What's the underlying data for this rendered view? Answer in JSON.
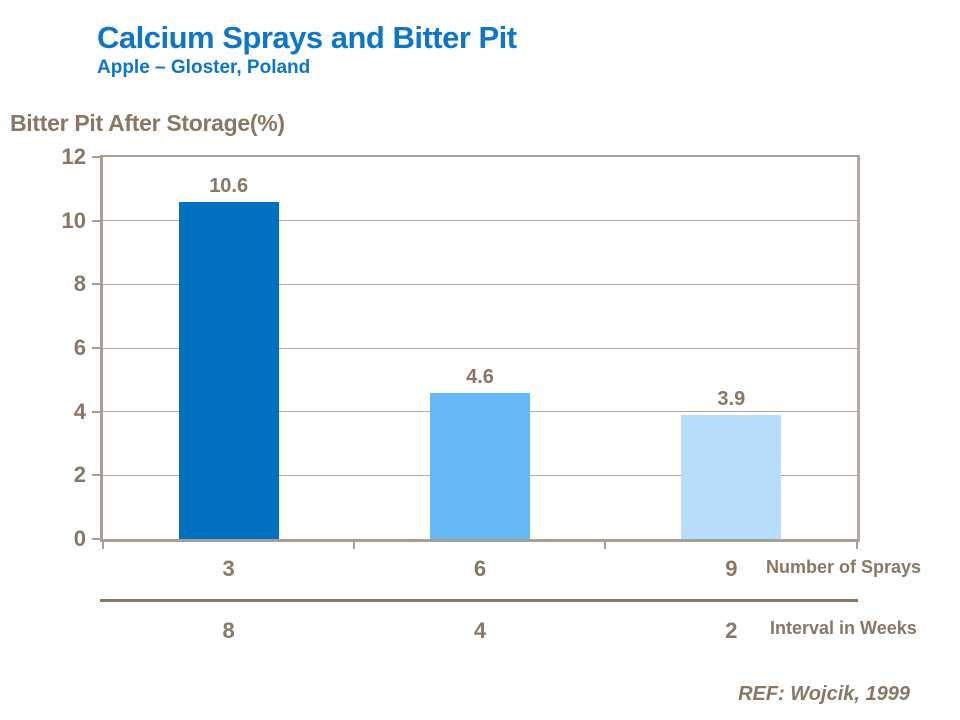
{
  "chart_data": {
    "type": "bar",
    "title": "Calcium Sprays and Bitter Pit",
    "subtitle": "Apple – Gloster, Poland",
    "ylabel": "Bitter Pit After Storage(%)",
    "ylim": [
      0,
      12
    ],
    "yticks": [
      0,
      2,
      4,
      6,
      8,
      10,
      12
    ],
    "grid": true,
    "values": [
      10.6,
      4.6,
      3.9
    ],
    "value_labels": [
      "10.6",
      "4.6",
      "3.9"
    ],
    "bar_colors": [
      "#0070bf",
      "#66b9f7",
      "#b8ddfb"
    ],
    "x_rows": [
      {
        "label": "Number of Sprays",
        "values": [
          "3",
          "6",
          "9"
        ]
      },
      {
        "label": "Interval in Weeks",
        "values": [
          "8",
          "4",
          "2"
        ]
      }
    ],
    "annotation": "REF: Wojcik, 1999"
  },
  "colors": {
    "title_blue": "#0d76c6",
    "text_brown": "#8a7663",
    "axis_gray": "#a89e93",
    "gridline_gray": "#b3a99e"
  }
}
